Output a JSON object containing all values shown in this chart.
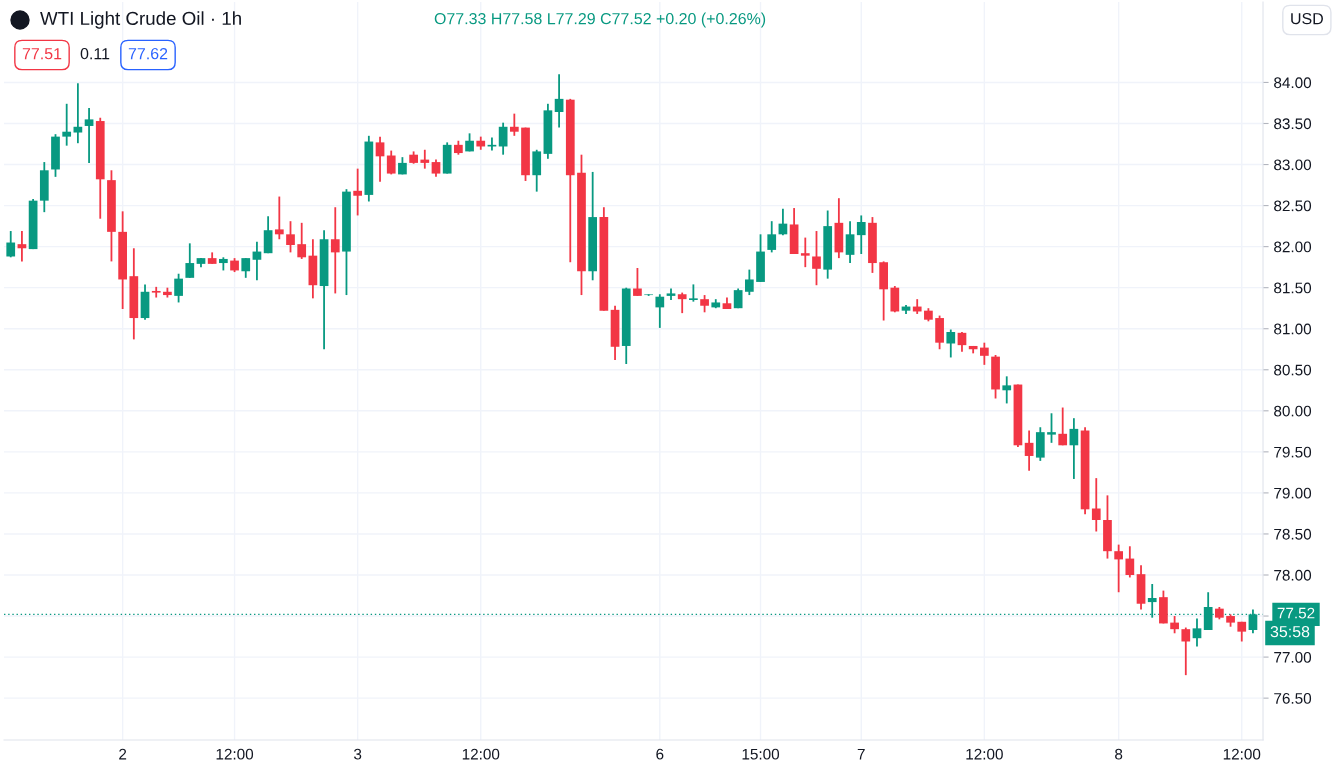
{
  "chart_data": {
    "type": "candlestick",
    "title": "WTI Light Crude Oil · 1h",
    "annotations": [
      "O77.33 H77.58 L77.29 C77.52 +0.20 (+0.26%)",
      "77.51",
      "0.11",
      "77.62",
      "USD",
      "35:58"
    ],
    "categories": [
      null,
      null,
      null,
      null,
      null,
      null,
      null,
      null,
      null,
      null,
      "2",
      null,
      null,
      null,
      null,
      null,
      null,
      null,
      null,
      null,
      "12:00",
      null,
      null,
      null,
      null,
      null,
      null,
      null,
      null,
      null,
      null,
      "3",
      null,
      null,
      null,
      null,
      null,
      null,
      null,
      null,
      null,
      null,
      "12:00",
      null,
      null,
      null,
      null,
      null,
      null,
      null,
      null,
      null,
      null,
      null,
      null,
      null,
      null,
      null,
      "6",
      null,
      null,
      null,
      null,
      null,
      null,
      null,
      null,
      "15:00",
      null,
      null,
      null,
      null,
      null,
      null,
      null,
      null,
      "7",
      null,
      null,
      null,
      null,
      null,
      null,
      null,
      null,
      null,
      null,
      "12:00",
      null,
      null,
      null,
      null,
      null,
      null,
      null,
      null,
      null,
      null,
      null,
      "8",
      null,
      null,
      null,
      null,
      null,
      null,
      null,
      null,
      null,
      null,
      "12:00",
      null
    ],
    "ohlc": [
      [
        81.88,
        82.19,
        81.87,
        82.05
      ],
      [
        82.03,
        82.19,
        81.82,
        81.98
      ],
      [
        81.97,
        82.58,
        81.97,
        82.56
      ],
      [
        82.56,
        83.03,
        82.42,
        82.93
      ],
      [
        82.94,
        83.37,
        82.85,
        83.34
      ],
      [
        83.34,
        83.74,
        83.23,
        83.4
      ],
      [
        83.39,
        83.99,
        83.26,
        83.46
      ],
      [
        83.47,
        83.69,
        83.02,
        83.55
      ],
      [
        83.53,
        83.57,
        82.34,
        82.82
      ],
      [
        82.81,
        82.93,
        81.82,
        82.18
      ],
      [
        82.18,
        82.43,
        81.24,
        81.6
      ],
      [
        81.64,
        81.98,
        80.87,
        81.13
      ],
      [
        81.13,
        81.54,
        81.11,
        81.45
      ],
      [
        81.46,
        81.51,
        81.38,
        81.44
      ],
      [
        81.45,
        81.5,
        81.38,
        81.41
      ],
      [
        81.4,
        81.67,
        81.32,
        81.61
      ],
      [
        81.62,
        82.04,
        81.62,
        81.8
      ],
      [
        81.79,
        81.86,
        81.75,
        81.86
      ],
      [
        81.86,
        81.93,
        81.79,
        81.79
      ],
      [
        81.8,
        81.87,
        81.71,
        81.85
      ],
      [
        81.83,
        81.86,
        81.69,
        81.71
      ],
      [
        81.7,
        81.86,
        81.62,
        81.86
      ],
      [
        81.84,
        82.06,
        81.59,
        81.94
      ],
      [
        81.92,
        82.37,
        81.92,
        82.2
      ],
      [
        82.21,
        82.61,
        82.09,
        82.15
      ],
      [
        82.15,
        82.31,
        81.93,
        82.02
      ],
      [
        82.03,
        82.29,
        81.85,
        81.87
      ],
      [
        81.89,
        82.09,
        81.37,
        81.53
      ],
      [
        81.52,
        82.2,
        80.75,
        82.09
      ],
      [
        82.09,
        82.48,
        81.43,
        81.93
      ],
      [
        81.94,
        82.7,
        81.41,
        82.67
      ],
      [
        82.68,
        82.95,
        82.38,
        82.62
      ],
      [
        82.63,
        83.35,
        82.55,
        83.28
      ],
      [
        83.27,
        83.34,
        82.79,
        83.1
      ],
      [
        83.11,
        83.17,
        82.88,
        82.89
      ],
      [
        82.88,
        83.09,
        82.88,
        83.02
      ],
      [
        83.12,
        83.16,
        83.01,
        83.02
      ],
      [
        83.06,
        83.18,
        82.95,
        83.02
      ],
      [
        83.03,
        83.06,
        82.85,
        82.89
      ],
      [
        82.89,
        83.27,
        82.89,
        83.24
      ],
      [
        83.24,
        83.29,
        83.12,
        83.14
      ],
      [
        83.16,
        83.38,
        83.16,
        83.29
      ],
      [
        83.29,
        83.34,
        83.18,
        83.22
      ],
      [
        83.22,
        83.33,
        83.17,
        83.24
      ],
      [
        83.22,
        83.51,
        83.12,
        83.46
      ],
      [
        83.46,
        83.62,
        83.35,
        83.4
      ],
      [
        83.45,
        83.45,
        82.8,
        82.87
      ],
      [
        82.87,
        83.18,
        82.67,
        83.16
      ],
      [
        83.13,
        83.74,
        83.07,
        83.66
      ],
      [
        83.64,
        84.1,
        83.45,
        83.8
      ],
      [
        83.79,
        83.8,
        81.81,
        82.87
      ],
      [
        82.9,
        83.12,
        81.41,
        81.7
      ],
      [
        81.7,
        82.91,
        81.59,
        82.36
      ],
      [
        82.36,
        82.48,
        81.22,
        81.22
      ],
      [
        81.23,
        81.28,
        80.62,
        80.78
      ],
      [
        80.79,
        81.5,
        80.57,
        81.49
      ],
      [
        81.49,
        81.74,
        81.4,
        81.4
      ],
      [
        81.41,
        81.42,
        81.4,
        81.41
      ],
      [
        81.26,
        81.42,
        81.01,
        81.39
      ],
      [
        81.4,
        81.49,
        81.35,
        81.43
      ],
      [
        81.42,
        81.44,
        81.19,
        81.36
      ],
      [
        81.35,
        81.54,
        81.33,
        81.37
      ],
      [
        81.36,
        81.41,
        81.2,
        81.28
      ],
      [
        81.26,
        81.36,
        81.25,
        81.32
      ],
      [
        81.31,
        81.38,
        81.24,
        81.24
      ],
      [
        81.25,
        81.49,
        81.25,
        81.47
      ],
      [
        81.45,
        81.72,
        81.41,
        81.6
      ],
      [
        81.57,
        82.15,
        81.57,
        81.94
      ],
      [
        81.96,
        82.31,
        81.93,
        82.15
      ],
      [
        82.15,
        82.46,
        82.14,
        82.28
      ],
      [
        82.27,
        82.47,
        81.91,
        81.91
      ],
      [
        81.92,
        82.11,
        81.75,
        81.89
      ],
      [
        81.88,
        82.19,
        81.53,
        81.73
      ],
      [
        81.72,
        82.44,
        81.61,
        82.25
      ],
      [
        82.29,
        82.59,
        81.86,
        81.93
      ],
      [
        81.9,
        82.31,
        81.8,
        82.15
      ],
      [
        82.14,
        82.38,
        81.91,
        82.3
      ],
      [
        82.29,
        82.36,
        81.68,
        81.8
      ],
      [
        81.81,
        81.82,
        81.1,
        81.48
      ],
      [
        81.5,
        81.52,
        81.2,
        81.21
      ],
      [
        81.22,
        81.29,
        81.18,
        81.27
      ],
      [
        81.27,
        81.36,
        81.18,
        81.21
      ],
      [
        81.22,
        81.25,
        81.09,
        81.11
      ],
      [
        81.13,
        81.16,
        80.75,
        80.83
      ],
      [
        80.82,
        80.99,
        80.65,
        80.96
      ],
      [
        80.95,
        80.96,
        80.72,
        80.8
      ],
      [
        80.79,
        80.79,
        80.7,
        80.75
      ],
      [
        80.77,
        80.83,
        80.56,
        80.67
      ],
      [
        80.66,
        80.68,
        80.15,
        80.26
      ],
      [
        80.25,
        80.42,
        80.09,
        80.31
      ],
      [
        80.32,
        80.32,
        79.56,
        79.58
      ],
      [
        79.61,
        79.76,
        79.27,
        79.45
      ],
      [
        79.43,
        79.8,
        79.39,
        79.74
      ],
      [
        79.71,
        79.97,
        79.61,
        79.74
      ],
      [
        79.72,
        80.04,
        79.58,
        79.58
      ],
      [
        79.58,
        79.91,
        79.17,
        79.78
      ],
      [
        79.76,
        79.8,
        78.74,
        78.8
      ],
      [
        78.81,
        79.18,
        78.53,
        78.67
      ],
      [
        78.67,
        78.97,
        78.2,
        78.29
      ],
      [
        78.29,
        78.37,
        77.79,
        78.19
      ],
      [
        78.2,
        78.35,
        77.97,
        78.0
      ],
      [
        78.01,
        78.12,
        77.58,
        77.65
      ],
      [
        77.67,
        77.89,
        77.48,
        77.72
      ],
      [
        77.73,
        77.81,
        77.41,
        77.41
      ],
      [
        77.42,
        77.5,
        77.29,
        77.34
      ],
      [
        77.34,
        77.36,
        76.78,
        77.19
      ],
      [
        77.23,
        77.47,
        77.13,
        77.35
      ],
      [
        77.33,
        77.79,
        77.33,
        77.61
      ],
      [
        77.59,
        77.61,
        77.46,
        77.48
      ],
      [
        77.5,
        77.52,
        77.37,
        77.42
      ],
      [
        77.43,
        77.43,
        77.19,
        77.31
      ],
      [
        77.33,
        77.58,
        77.29,
        77.52
      ]
    ],
    "colors": [
      "#089981",
      "#f23645",
      "#089981",
      "#089981",
      "#089981",
      "#089981",
      "#089981",
      "#089981",
      "#f23645",
      "#f23645",
      "#f23645",
      "#f23645",
      "#089981",
      "#f23645",
      "#f23645",
      "#089981",
      "#089981",
      "#089981",
      "#f23645",
      "#089981",
      "#f23645",
      "#089981",
      "#089981",
      "#089981",
      "#f23645",
      "#f23645",
      "#f23645",
      "#f23645",
      "#089981",
      "#f23645",
      "#089981",
      "#f23645",
      "#089981",
      "#f23645",
      "#f23645",
      "#089981",
      "#f23645",
      "#f23645",
      "#f23645",
      "#089981",
      "#f23645",
      "#089981",
      "#f23645",
      "#089981",
      "#089981",
      "#f23645",
      "#f23645",
      "#089981",
      "#089981",
      "#089981",
      "#f23645",
      "#f23645",
      "#089981",
      "#f23645",
      "#f23645",
      "#089981",
      "#f23645",
      "#089981",
      "#089981",
      "#089981",
      "#f23645",
      "#089981",
      "#f23645",
      "#089981",
      "#f23645",
      "#089981",
      "#089981",
      "#089981",
      "#089981",
      "#089981",
      "#f23645",
      "#f23645",
      "#f23645",
      "#089981",
      "#f23645",
      "#089981",
      "#089981",
      "#f23645",
      "#f23645",
      "#f23645",
      "#089981",
      "#f23645",
      "#f23645",
      "#f23645",
      "#089981",
      "#f23645",
      "#f23645",
      "#f23645",
      "#f23645",
      "#089981",
      "#f23645",
      "#f23645",
      "#089981",
      "#089981",
      "#f23645",
      "#089981",
      "#f23645",
      "#f23645",
      "#f23645",
      "#f23645",
      "#f23645",
      "#f23645",
      "#089981",
      "#f23645",
      "#f23645",
      "#f23645",
      "#089981",
      "#089981",
      "#f23645",
      "#f23645",
      "#f23645",
      "#089981"
    ],
    "ylim": [
      75.99,
      84.98
    ],
    "yticks": [
      {
        "value": 76.5,
        "label": "76.50"
      },
      {
        "value": 77.0,
        "label": "77.00"
      },
      {
        "value": 77.5,
        "label": null
      },
      {
        "value": 78.0,
        "label": "78.00"
      },
      {
        "value": 78.5,
        "label": "78.50"
      },
      {
        "value": 79.0,
        "label": "79.00"
      },
      {
        "value": 79.5,
        "label": "79.50"
      },
      {
        "value": 80.0,
        "label": "80.00"
      },
      {
        "value": 80.5,
        "label": "80.50"
      },
      {
        "value": 81.0,
        "label": "81.00"
      },
      {
        "value": 81.5,
        "label": "81.50"
      },
      {
        "value": 82.0,
        "label": "82.00"
      },
      {
        "value": 82.5,
        "label": "82.50"
      },
      {
        "value": 83.0,
        "label": "83.00"
      },
      {
        "value": 83.5,
        "label": "83.50"
      },
      {
        "value": 84.0,
        "label": "84.00"
      }
    ],
    "ref_lines": [
      {
        "axis": "y",
        "value": 77.52,
        "label": "77.52",
        "color": "#089981",
        "line_style": "dotted"
      }
    ],
    "grid": true
  }
}
